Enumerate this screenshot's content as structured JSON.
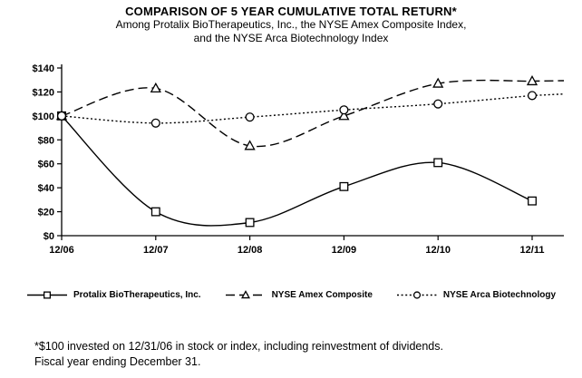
{
  "header": {
    "title": "COMPARISON OF 5 YEAR CUMULATIVE TOTAL RETURN*",
    "subtitle_line1": "Among Protalix BioTherapeutics, Inc., the NYSE Amex Composite Index,",
    "subtitle_line2": "and the NYSE Arca Biotechnology Index"
  },
  "footnote": {
    "line1": "*$100 invested on 12/31/06 in stock or index, including reinvestment of dividends.",
    "line2": "Fiscal year ending December 31."
  },
  "chart_data": {
    "type": "line",
    "title": "COMPARISON OF 5 YEAR CUMULATIVE TOTAL RETURN*",
    "categories": [
      "12/06",
      "12/07",
      "12/08",
      "12/09",
      "12/10",
      "12/11"
    ],
    "series": [
      {
        "name": "Protalix BioTherapeutics, Inc.",
        "marker": "square",
        "line_style": "solid",
        "extend_right": false,
        "values": [
          100,
          20,
          11,
          41,
          61,
          29
        ]
      },
      {
        "name": "NYSE Amex Composite",
        "marker": "triangle",
        "line_style": "dashed",
        "extend_right": true,
        "values": [
          100,
          123,
          75,
          100,
          127,
          129
        ]
      },
      {
        "name": "NYSE Arca Biotechnology",
        "marker": "circle",
        "line_style": "dotted",
        "extend_right": true,
        "values": [
          100,
          94,
          99,
          105,
          110,
          117
        ]
      }
    ],
    "y_tick_labels": [
      "$0",
      "$20",
      "$40",
      "$60",
      "$80",
      "$100",
      "$120",
      "$140"
    ],
    "ylim": [
      0,
      140
    ],
    "y_tick_step": 20,
    "xlabel": "",
    "ylabel": "",
    "grid": false,
    "legend_position": "bottom",
    "line_color": "#000000",
    "marker_fill": "#ffffff",
    "background_color": "#ffffff"
  }
}
